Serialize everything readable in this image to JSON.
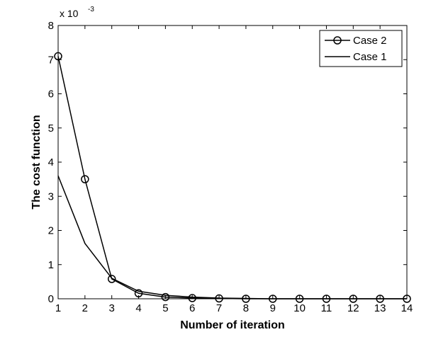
{
  "chart_data": {
    "type": "line",
    "xlabel": "Number of iteration",
    "ylabel": "The cost function",
    "xlim": [
      1,
      14
    ],
    "ylim": [
      0,
      8
    ],
    "y_multiplier": "x 10",
    "y_multiplier_exponent": "-3",
    "x_ticks": [
      "1",
      "2",
      "3",
      "4",
      "5",
      "6",
      "7",
      "8",
      "9",
      "10",
      "11",
      "12",
      "13",
      "14"
    ],
    "y_ticks": [
      "0",
      "1",
      "2",
      "3",
      "4",
      "5",
      "6",
      "7",
      "8"
    ],
    "grid": false,
    "legend_position": "top-right",
    "x": [
      1,
      2,
      3,
      4,
      5,
      6,
      7,
      8,
      9,
      10,
      11,
      12,
      13,
      14
    ],
    "series": [
      {
        "name": "Case 2",
        "marker": "circle",
        "color": "#000000",
        "values": [
          7.1,
          3.5,
          0.58,
          0.16,
          0.05,
          0.02,
          0.01,
          0.0,
          0.0,
          0.0,
          0.0,
          0.0,
          0.0,
          0.0
        ]
      },
      {
        "name": "Case 1",
        "marker": "none",
        "color": "#000000",
        "values": [
          3.6,
          1.62,
          0.6,
          0.22,
          0.1,
          0.05,
          0.02,
          0.01,
          0.0,
          0.0,
          0.0,
          0.0,
          0.0,
          0.0
        ]
      }
    ]
  }
}
